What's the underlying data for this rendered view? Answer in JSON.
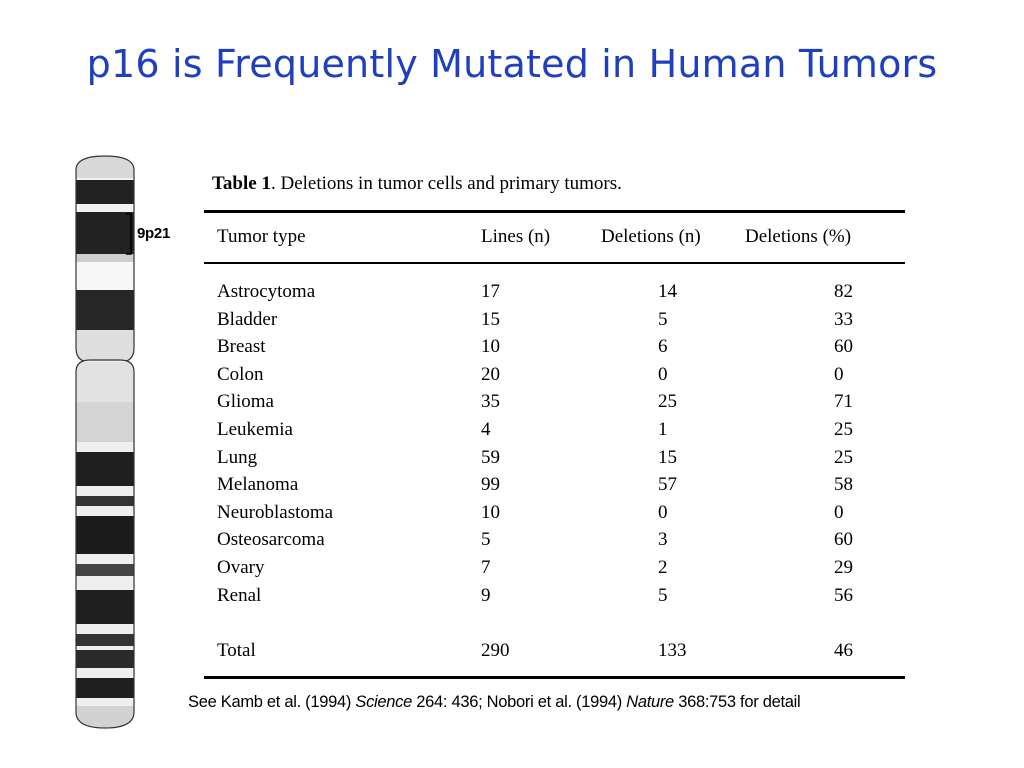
{
  "slide": {
    "title": "p16 is Frequently Mutated in Human Tumors"
  },
  "figure": {
    "band_label": "9p21"
  },
  "table": {
    "caption_label": "Table 1",
    "caption_text": ". Deletions in tumor cells and primary tumors.",
    "columns": [
      "Tumor type",
      "Lines (n)",
      "Deletions (n)",
      "Deletions (%)"
    ],
    "rows": [
      [
        "Astrocytoma",
        "17",
        "14",
        "82"
      ],
      [
        "Bladder",
        "15",
        "5",
        "33"
      ],
      [
        "Breast",
        "10",
        "6",
        "60"
      ],
      [
        "Colon",
        "20",
        "0",
        "0"
      ],
      [
        "Glioma",
        "35",
        "25",
        "71"
      ],
      [
        "Leukemia",
        "4",
        "1",
        "25"
      ],
      [
        "Lung",
        "59",
        "15",
        "25"
      ],
      [
        "Melanoma",
        "99",
        "57",
        "58"
      ],
      [
        "Neuroblastoma",
        "10",
        "0",
        "0"
      ],
      [
        "Osteosarcoma",
        "5",
        "3",
        "60"
      ],
      [
        "Ovary",
        "7",
        "2",
        "29"
      ],
      [
        "Renal",
        "9",
        "5",
        "56"
      ]
    ],
    "total": [
      "Total",
      "290",
      "133",
      "46"
    ]
  },
  "footer": {
    "prefix": "See Kamb et al. (1994) ",
    "journal1": "Science",
    "mid": " 264: 436; Nobori et al. (1994) ",
    "journal2": "Nature",
    "suffix": " 368:753 for detail"
  }
}
